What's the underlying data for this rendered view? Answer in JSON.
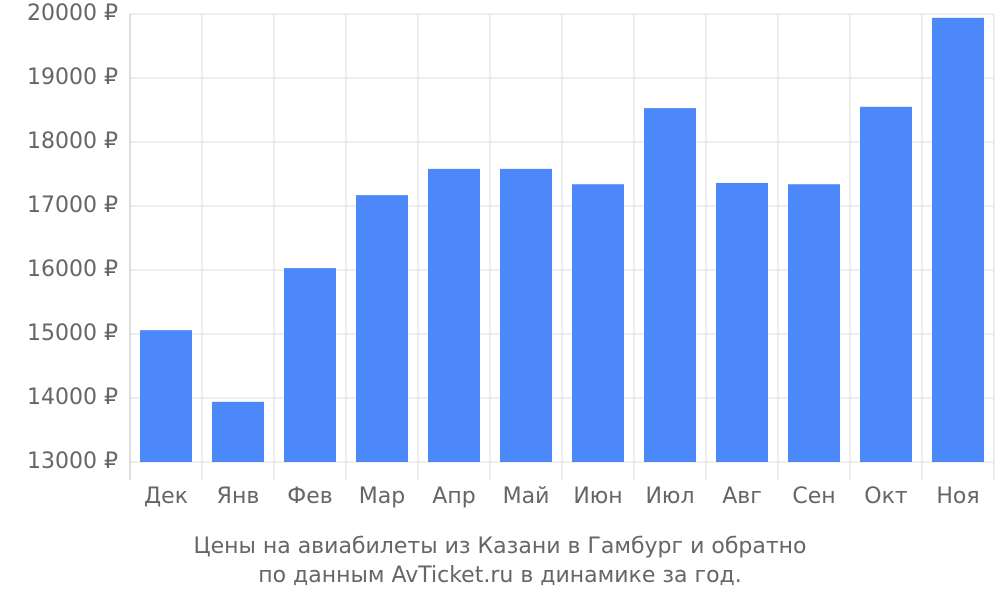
{
  "chart_data": {
    "type": "bar",
    "title": "Цены на авиабилеты из Казани в Гамбург и обратно",
    "subtitle": "по данным AvTicket.ru в динамике за год.",
    "categories": [
      "Дек",
      "Янв",
      "Фев",
      "Мар",
      "Апр",
      "Май",
      "Июн",
      "Июл",
      "Авг",
      "Сен",
      "Окт",
      "Ноя"
    ],
    "values": [
      15060,
      13940,
      16030,
      17170,
      17580,
      17580,
      17340,
      18530,
      17360,
      17340,
      18550,
      19940
    ],
    "color": "#4d88fa",
    "ylim": [
      13000,
      20000
    ],
    "yticks": [
      {
        "value": 13000,
        "label": "13000 ₽"
      },
      {
        "value": 14000,
        "label": "14000 ₽"
      },
      {
        "value": 15000,
        "label": "15000 ₽"
      },
      {
        "value": 16000,
        "label": "16000 ₽"
      },
      {
        "value": 17000,
        "label": "17000 ₽"
      },
      {
        "value": 18000,
        "label": "18000 ₽"
      },
      {
        "value": 19000,
        "label": "19000 ₽"
      },
      {
        "value": 20000,
        "label": "20000 ₽"
      }
    ],
    "grid": true
  }
}
